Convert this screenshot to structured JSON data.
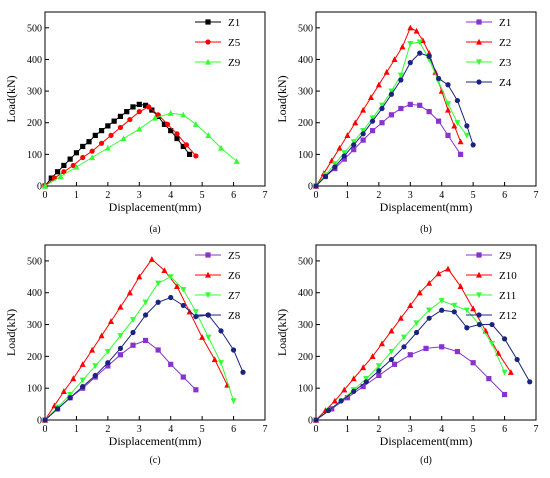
{
  "chart_data": [
    {
      "type": "line",
      "panel_label": "(a)",
      "xlabel": "Displacement(mm)",
      "ylabel": "Load(kN)",
      "xlim": [
        0,
        7
      ],
      "ylim": [
        0,
        550
      ],
      "x_ticks": [
        0,
        1,
        2,
        3,
        4,
        5,
        6,
        7
      ],
      "y_ticks": [
        0,
        100,
        200,
        300,
        400,
        500
      ],
      "legend_position": "top-right",
      "series": [
        {
          "name": "Z1",
          "color": "#000000",
          "marker": "square",
          "x": [
            0,
            0.2,
            0.4,
            0.6,
            0.8,
            1.0,
            1.2,
            1.4,
            1.6,
            1.8,
            2.0,
            2.2,
            2.4,
            2.6,
            2.8,
            3.0,
            3.2,
            3.4,
            3.6,
            3.8,
            4.0,
            4.2,
            4.4,
            4.6
          ],
          "y": [
            0,
            25,
            45,
            65,
            85,
            105,
            125,
            140,
            160,
            175,
            190,
            205,
            220,
            235,
            250,
            258,
            255,
            240,
            220,
            195,
            175,
            150,
            125,
            100
          ]
        },
        {
          "name": "Z5",
          "color": "#ff0000",
          "marker": "circle",
          "x": [
            0,
            0.3,
            0.6,
            0.9,
            1.2,
            1.5,
            1.8,
            2.1,
            2.4,
            2.7,
            3.0,
            3.3,
            3.6,
            3.9,
            4.2,
            4.5,
            4.8
          ],
          "y": [
            0,
            25,
            45,
            65,
            90,
            110,
            135,
            160,
            185,
            210,
            235,
            250,
            225,
            195,
            165,
            130,
            95
          ]
        },
        {
          "name": "Z9",
          "color": "#33ff33",
          "marker": "triangle",
          "x": [
            0,
            0.5,
            1.0,
            1.5,
            2.0,
            2.5,
            3.0,
            3.5,
            4.0,
            4.4,
            4.8,
            5.2,
            5.6,
            6.1
          ],
          "y": [
            0,
            30,
            60,
            90,
            120,
            150,
            180,
            215,
            230,
            225,
            195,
            160,
            120,
            78
          ]
        }
      ]
    },
    {
      "type": "line",
      "panel_label": "(b)",
      "xlabel": "Displacement(mm)",
      "ylabel": "Load(kN)",
      "xlim": [
        0,
        7
      ],
      "ylim": [
        0,
        550
      ],
      "x_ticks": [
        0,
        1,
        2,
        3,
        4,
        5,
        6,
        7
      ],
      "y_ticks": [
        0,
        100,
        200,
        300,
        400,
        500
      ],
      "legend_position": "top-right",
      "series": [
        {
          "name": "Z1",
          "color": "#8833cc",
          "marker": "square",
          "x": [
            0,
            0.3,
            0.6,
            0.9,
            1.2,
            1.5,
            1.8,
            2.1,
            2.4,
            2.7,
            3.0,
            3.3,
            3.6,
            3.9,
            4.2,
            4.6
          ],
          "y": [
            0,
            30,
            55,
            85,
            115,
            145,
            175,
            200,
            225,
            245,
            258,
            255,
            235,
            205,
            160,
            100
          ]
        },
        {
          "name": "Z2",
          "color": "#ff0000",
          "marker": "triangle",
          "x": [
            0,
            0.25,
            0.5,
            0.75,
            1.0,
            1.25,
            1.5,
            1.75,
            2.0,
            2.25,
            2.5,
            2.75,
            3.0,
            3.2,
            3.4,
            3.6,
            3.8,
            4.0,
            4.2,
            4.4,
            4.6
          ],
          "y": [
            0,
            40,
            80,
            120,
            160,
            200,
            240,
            280,
            320,
            360,
            400,
            440,
            500,
            490,
            460,
            420,
            360,
            300,
            240,
            190,
            140
          ]
        },
        {
          "name": "Z3",
          "color": "#33ff33",
          "marker": "triangle-down",
          "x": [
            0,
            0.3,
            0.6,
            0.9,
            1.2,
            1.5,
            1.8,
            2.1,
            2.4,
            2.7,
            3.0,
            3.3,
            3.6,
            3.9,
            4.2,
            4.5,
            4.8
          ],
          "y": [
            0,
            35,
            70,
            105,
            140,
            175,
            215,
            255,
            300,
            350,
            450,
            455,
            400,
            330,
            260,
            200,
            160
          ]
        },
        {
          "name": "Z4",
          "color": "#1a237e",
          "marker": "circle",
          "x": [
            0,
            0.3,
            0.6,
            0.9,
            1.2,
            1.5,
            1.8,
            2.1,
            2.4,
            2.7,
            3.0,
            3.3,
            3.6,
            3.9,
            4.2,
            4.5,
            4.8,
            5.0
          ],
          "y": [
            0,
            30,
            60,
            95,
            130,
            165,
            205,
            245,
            290,
            335,
            390,
            420,
            410,
            340,
            320,
            270,
            190,
            130
          ]
        }
      ]
    },
    {
      "type": "line",
      "panel_label": "(c)",
      "xlabel": "Displacement(mm)",
      "ylabel": "Load(kN)",
      "xlim": [
        0,
        7
      ],
      "ylim": [
        0,
        550
      ],
      "x_ticks": [
        0,
        1,
        2,
        3,
        4,
        5,
        6,
        7
      ],
      "y_ticks": [
        0,
        100,
        200,
        300,
        400,
        500
      ],
      "legend_position": "top-right",
      "series": [
        {
          "name": "Z5",
          "color": "#8833cc",
          "marker": "square",
          "x": [
            0,
            0.4,
            0.8,
            1.2,
            1.6,
            2.0,
            2.4,
            2.8,
            3.2,
            3.6,
            4.0,
            4.4,
            4.8
          ],
          "y": [
            0,
            35,
            70,
            100,
            135,
            170,
            205,
            235,
            250,
            220,
            175,
            135,
            95
          ]
        },
        {
          "name": "Z6",
          "color": "#ff0000",
          "marker": "triangle",
          "x": [
            0,
            0.3,
            0.6,
            0.9,
            1.2,
            1.5,
            1.8,
            2.1,
            2.4,
            2.7,
            3.0,
            3.4,
            3.8,
            4.2,
            4.6,
            5.0,
            5.4,
            5.8
          ],
          "y": [
            0,
            45,
            90,
            130,
            175,
            220,
            265,
            310,
            355,
            400,
            450,
            505,
            470,
            420,
            340,
            260,
            190,
            110
          ]
        },
        {
          "name": "Z7",
          "color": "#33ff33",
          "marker": "triangle-down",
          "x": [
            0,
            0.4,
            0.8,
            1.2,
            1.6,
            2.0,
            2.4,
            2.8,
            3.2,
            3.6,
            4.0,
            4.4,
            4.8,
            5.2,
            5.6,
            6.0
          ],
          "y": [
            0,
            40,
            80,
            125,
            170,
            215,
            265,
            315,
            370,
            430,
            450,
            410,
            340,
            260,
            180,
            60
          ]
        },
        {
          "name": "Z8",
          "color": "#1a237e",
          "marker": "circle",
          "x": [
            0,
            0.4,
            0.8,
            1.2,
            1.6,
            2.0,
            2.4,
            2.8,
            3.2,
            3.6,
            4.0,
            4.4,
            4.8,
            5.2,
            5.6,
            6.0,
            6.3
          ],
          "y": [
            0,
            35,
            70,
            105,
            140,
            180,
            225,
            275,
            330,
            370,
            385,
            360,
            325,
            330,
            280,
            220,
            150
          ]
        }
      ]
    },
    {
      "type": "line",
      "panel_label": "(d)",
      "xlabel": "Displacement(mm)",
      "ylabel": "Load(kN)",
      "xlim": [
        0,
        7
      ],
      "ylim": [
        0,
        550
      ],
      "x_ticks": [
        0,
        1,
        2,
        3,
        4,
        5,
        6,
        7
      ],
      "y_ticks": [
        0,
        100,
        200,
        300,
        400,
        500
      ],
      "legend_position": "top-right",
      "series": [
        {
          "name": "Z9",
          "color": "#8833cc",
          "marker": "square",
          "x": [
            0,
            0.5,
            1.0,
            1.5,
            2.0,
            2.5,
            3.0,
            3.5,
            4.0,
            4.5,
            5.0,
            5.5,
            6.0
          ],
          "y": [
            0,
            35,
            70,
            105,
            140,
            175,
            205,
            225,
            230,
            215,
            180,
            130,
            80
          ]
        },
        {
          "name": "Z10",
          "color": "#ff0000",
          "marker": "triangle",
          "x": [
            0,
            0.3,
            0.6,
            0.9,
            1.2,
            1.5,
            1.8,
            2.1,
            2.4,
            2.7,
            3.0,
            3.3,
            3.6,
            3.9,
            4.2,
            4.6,
            5.0,
            5.4,
            5.8,
            6.2
          ],
          "y": [
            0,
            30,
            60,
            95,
            130,
            165,
            200,
            240,
            280,
            320,
            360,
            400,
            430,
            460,
            475,
            420,
            350,
            280,
            210,
            150
          ]
        },
        {
          "name": "Z11",
          "color": "#33ff33",
          "marker": "triangle-down",
          "x": [
            0,
            0.4,
            0.8,
            1.2,
            1.6,
            2.0,
            2.4,
            2.8,
            3.2,
            3.6,
            4.0,
            4.4,
            4.8,
            5.2,
            5.6,
            6.0
          ],
          "y": [
            0,
            30,
            60,
            95,
            130,
            170,
            215,
            260,
            305,
            345,
            375,
            360,
            345,
            300,
            240,
            150
          ]
        },
        {
          "name": "Z12",
          "color": "#1a237e",
          "marker": "circle",
          "x": [
            0,
            0.4,
            0.8,
            1.2,
            1.6,
            2.0,
            2.4,
            2.8,
            3.2,
            3.6,
            4.0,
            4.4,
            4.8,
            5.2,
            5.6,
            6.0,
            6.4,
            6.8
          ],
          "y": [
            0,
            30,
            60,
            90,
            120,
            155,
            190,
            230,
            275,
            320,
            345,
            340,
            290,
            300,
            300,
            255,
            190,
            120
          ]
        }
      ]
    }
  ]
}
